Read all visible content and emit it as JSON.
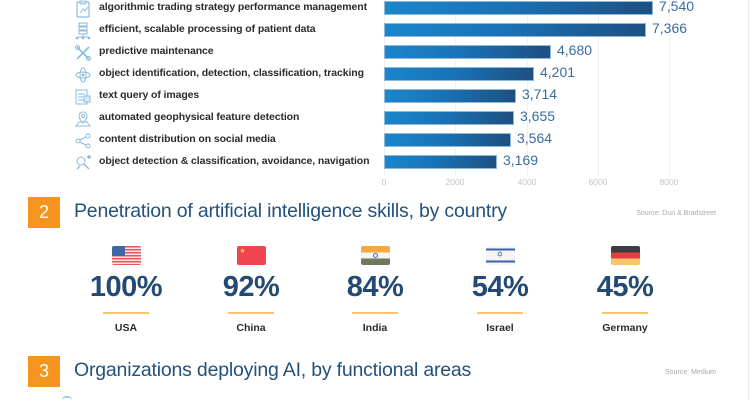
{
  "section1": {
    "rows": [
      {
        "icon": "clipboard-chart-icon",
        "label": "algorithmic trading strategy performance management",
        "value": 7540,
        "display": "7,540"
      },
      {
        "icon": "server-network-icon",
        "label": "efficient, scalable processing of patient data",
        "value": 7366,
        "display": "7,366"
      },
      {
        "icon": "wrench-screwdriver-icon",
        "label": "predictive maintenance",
        "value": 4680,
        "display": "4,680"
      },
      {
        "icon": "atom-scan-icon",
        "label": "object identification, detection, classification, tracking",
        "value": 4201,
        "display": "4,201"
      },
      {
        "icon": "document-image-icon",
        "label": "text query of images",
        "value": 3714,
        "display": "3,714"
      },
      {
        "icon": "map-pin-icon",
        "label": "automated geophysical feature detection",
        "value": 3655,
        "display": "3,655"
      },
      {
        "icon": "share-icon",
        "label": "content distribution on social media",
        "value": 3564,
        "display": "3,564"
      },
      {
        "icon": "robot-arm-icon",
        "label": "object detection & classification, avoidance, navigation",
        "value": 3169,
        "display": "3,169"
      }
    ],
    "axis_ticks": [
      "0",
      "2000",
      "4000",
      "6000",
      "8000"
    ]
  },
  "section2": {
    "number": "2",
    "title": "Penetration of artificial intelligence skills, by country",
    "source": "Source: Dun & Bradstreet",
    "countries": [
      {
        "name": "USA",
        "percent": "100%",
        "flag": "us-flag-icon"
      },
      {
        "name": "China",
        "percent": "92%",
        "flag": "china-flag-icon"
      },
      {
        "name": "India",
        "percent": "84%",
        "flag": "india-flag-icon"
      },
      {
        "name": "Israel",
        "percent": "54%",
        "flag": "israel-flag-icon"
      },
      {
        "name": "Germany",
        "percent": "45%",
        "flag": "germany-flag-icon"
      }
    ]
  },
  "section3": {
    "number": "3",
    "title": "Organizations deploying AI, by functional areas",
    "source": "Source: Medium"
  },
  "colors": {
    "accent_orange": "#f7941d",
    "title_blue": "#23527c",
    "bar_start": "#1a86cc",
    "bar_end": "#1e4f82",
    "value_blue": "#3a6c9e",
    "underline": "#f9c46b"
  },
  "chart_data": [
    {
      "type": "bar",
      "orientation": "horizontal",
      "title": "",
      "categories": [
        "algorithmic trading strategy performance management",
        "efficient, scalable processing of patient data",
        "predictive maintenance",
        "object identification, detection, classification, tracking",
        "text query of images",
        "automated geophysical feature detection",
        "content distribution on social media",
        "object detection & classification, avoidance, navigation"
      ],
      "values": [
        7540,
        7366,
        4680,
        4201,
        3714,
        3655,
        3564,
        3169
      ],
      "xlabel": "",
      "ylabel": "",
      "xlim": [
        0,
        8000
      ],
      "xticks": [
        0,
        2000,
        4000,
        6000,
        8000
      ],
      "grid": true,
      "data_labels": true
    },
    {
      "type": "table",
      "title": "Penetration of artificial intelligence skills, by country",
      "source": "Source: Dun & Bradstreet",
      "categories": [
        "USA",
        "China",
        "India",
        "Israel",
        "Germany"
      ],
      "values": [
        100,
        92,
        84,
        54,
        45
      ],
      "unit": "%"
    }
  ]
}
